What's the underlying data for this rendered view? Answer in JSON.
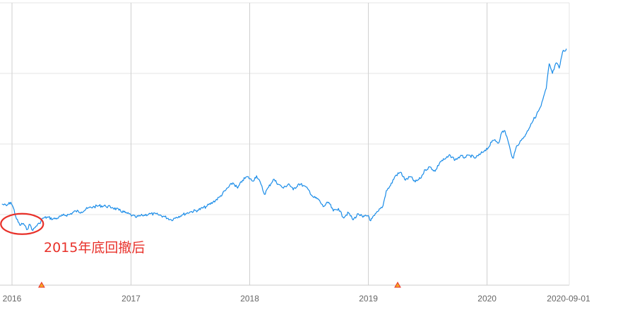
{
  "chart_data": {
    "type": "line",
    "title": "",
    "xlabel": "",
    "ylabel": "",
    "x_range": [
      "2015-12-01",
      "2020-09-01"
    ],
    "x_ticks": [
      "2016",
      "2017",
      "2018",
      "2019",
      "2020",
      "2020-09-01"
    ],
    "grid": true,
    "legend": "none",
    "series": [
      {
        "color": "#1a8ce8",
        "points": [
          [
            "2015-12-01",
            46.0
          ],
          [
            "2015-12-15",
            45.0
          ],
          [
            "2015-12-28",
            47.0
          ],
          [
            "2016-01-05",
            44.0
          ],
          [
            "2016-01-15",
            37.5
          ],
          [
            "2016-01-25",
            34.0
          ],
          [
            "2016-02-05",
            35.0
          ],
          [
            "2016-02-15",
            31.5
          ],
          [
            "2016-02-25",
            34.5
          ],
          [
            "2016-03-05",
            31.0
          ],
          [
            "2016-03-15",
            33.5
          ],
          [
            "2016-03-25",
            35.0
          ],
          [
            "2016-04-05",
            38.0
          ],
          [
            "2016-04-20",
            38.5
          ],
          [
            "2016-05-05",
            37.5
          ],
          [
            "2016-05-20",
            38.0
          ],
          [
            "2016-06-05",
            39.5
          ],
          [
            "2016-06-25",
            40.0
          ],
          [
            "2016-07-15",
            42.0
          ],
          [
            "2016-08-01",
            41.5
          ],
          [
            "2016-08-20",
            43.5
          ],
          [
            "2016-09-10",
            44.5
          ],
          [
            "2016-09-25",
            45.0
          ],
          [
            "2016-10-15",
            44.8
          ],
          [
            "2016-11-05",
            44.0
          ],
          [
            "2016-11-25",
            42.5
          ],
          [
            "2016-12-15",
            41.0
          ],
          [
            "2017-01-05",
            39.5
          ],
          [
            "2017-01-15",
            38.5
          ],
          [
            "2017-02-05",
            39.5
          ],
          [
            "2017-03-01",
            40.5
          ],
          [
            "2017-03-25",
            40.0
          ],
          [
            "2017-04-15",
            38.8
          ],
          [
            "2017-05-05",
            37.0
          ],
          [
            "2017-05-20",
            38.5
          ],
          [
            "2017-06-10",
            40.0
          ],
          [
            "2017-07-01",
            41.5
          ],
          [
            "2017-07-25",
            42.5
          ],
          [
            "2017-08-20",
            44.5
          ],
          [
            "2017-09-10",
            47.0
          ],
          [
            "2017-10-01",
            50.0
          ],
          [
            "2017-10-20",
            54.0
          ],
          [
            "2017-11-10",
            58.0
          ],
          [
            "2017-11-25",
            55.0
          ],
          [
            "2017-12-10",
            59.5
          ],
          [
            "2017-12-25",
            61.5
          ],
          [
            "2018-01-10",
            59.0
          ],
          [
            "2018-01-22",
            62.0
          ],
          [
            "2018-02-05",
            57.0
          ],
          [
            "2018-02-15",
            51.5
          ],
          [
            "2018-02-28",
            55.5
          ],
          [
            "2018-03-15",
            60.0
          ],
          [
            "2018-04-01",
            57.0
          ],
          [
            "2018-04-15",
            55.0
          ],
          [
            "2018-05-01",
            57.5
          ],
          [
            "2018-05-15",
            54.0
          ],
          [
            "2018-06-01",
            57.5
          ],
          [
            "2018-06-15",
            56.5
          ],
          [
            "2018-07-01",
            54.0
          ],
          [
            "2018-07-15",
            50.0
          ],
          [
            "2018-08-01",
            48.5
          ],
          [
            "2018-08-15",
            44.5
          ],
          [
            "2018-09-01",
            47.0
          ],
          [
            "2018-09-15",
            42.0
          ],
          [
            "2018-10-01",
            43.5
          ],
          [
            "2018-10-15",
            38.5
          ],
          [
            "2018-11-01",
            41.0
          ],
          [
            "2018-11-15",
            37.0
          ],
          [
            "2018-12-01",
            40.5
          ],
          [
            "2018-12-15",
            38.5
          ],
          [
            "2019-01-01",
            39.5
          ],
          [
            "2019-01-08",
            36.5
          ],
          [
            "2019-01-20",
            39.5
          ],
          [
            "2019-02-01",
            42.0
          ],
          [
            "2019-02-15",
            45.0
          ],
          [
            "2019-02-25",
            53.5
          ],
          [
            "2019-03-10",
            56.5
          ],
          [
            "2019-03-25",
            62.0
          ],
          [
            "2019-04-10",
            64.0
          ],
          [
            "2019-04-25",
            59.5
          ],
          [
            "2019-05-10",
            61.5
          ],
          [
            "2019-05-25",
            58.5
          ],
          [
            "2019-06-10",
            60.5
          ],
          [
            "2019-06-25",
            65.5
          ],
          [
            "2019-07-10",
            67.0
          ],
          [
            "2019-07-25",
            64.5
          ],
          [
            "2019-08-10",
            70.0
          ],
          [
            "2019-08-25",
            71.5
          ],
          [
            "2019-09-10",
            73.5
          ],
          [
            "2019-09-25",
            71.0
          ],
          [
            "2019-10-10",
            73.0
          ],
          [
            "2019-10-25",
            72.5
          ],
          [
            "2019-11-10",
            73.5
          ],
          [
            "2019-11-25",
            72.0
          ],
          [
            "2019-12-10",
            74.0
          ],
          [
            "2019-12-25",
            76.5
          ],
          [
            "2020-01-05",
            78.0
          ],
          [
            "2020-01-15",
            81.0
          ],
          [
            "2020-01-25",
            82.5
          ],
          [
            "2020-02-05",
            80.5
          ],
          [
            "2020-02-15",
            86.5
          ],
          [
            "2020-02-25",
            87.5
          ],
          [
            "2020-03-05",
            82.0
          ],
          [
            "2020-03-15",
            74.5
          ],
          [
            "2020-03-22",
            72.0
          ],
          [
            "2020-04-01",
            79.0
          ],
          [
            "2020-04-15",
            82.0
          ],
          [
            "2020-05-01",
            86.0
          ],
          [
            "2020-05-15",
            91.5
          ],
          [
            "2020-06-01",
            96.5
          ],
          [
            "2020-06-15",
            101.5
          ],
          [
            "2020-07-01",
            111.5
          ],
          [
            "2020-07-10",
            125.5
          ],
          [
            "2020-07-20",
            120.0
          ],
          [
            "2020-08-01",
            126.0
          ],
          [
            "2020-08-10",
            123.0
          ],
          [
            "2020-08-20",
            132.0
          ],
          [
            "2020-09-01",
            134.0
          ]
        ]
      }
    ],
    "markers": [
      {
        "date": "2016-04-01",
        "color": "#e8312a",
        "fill": "#f5a623"
      },
      {
        "date": "2019-04-01",
        "color": "#e8312a",
        "fill": "#f5a623"
      }
    ],
    "annotations": [
      {
        "text": "2015年底回撤后",
        "target_date": "2016-02-01",
        "target_value": 33.5,
        "color": "#e8312a"
      }
    ]
  }
}
